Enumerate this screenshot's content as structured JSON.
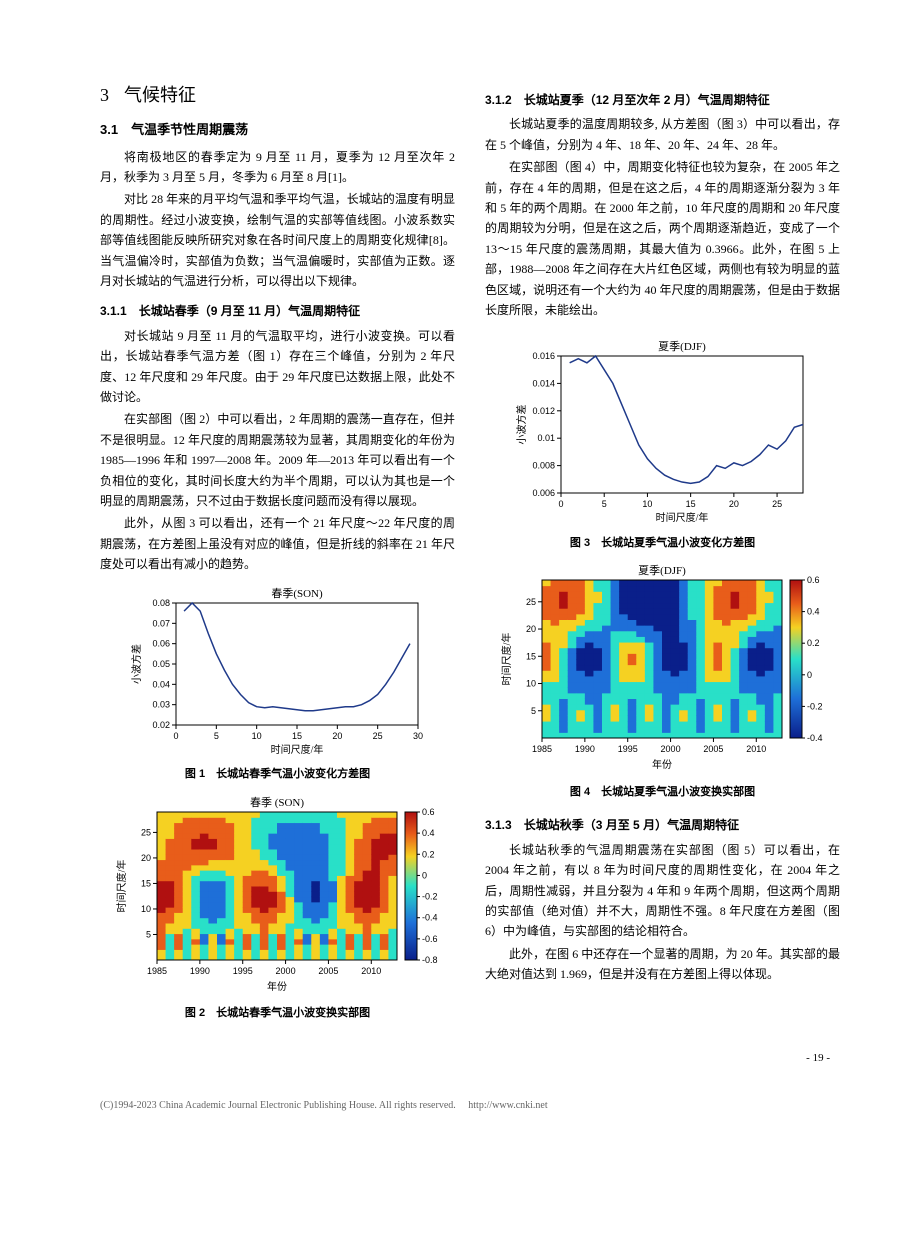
{
  "section": {
    "num": "3",
    "title": "气候特征"
  },
  "sub31": {
    "num": "3.1",
    "title": "气温季节性周期震荡",
    "p1": "将南极地区的春季定为 9 月至 11 月，夏季为 12 月至次年 2 月，秋季为 3 月至 5 月，冬季为 6 月至 8 月[1]。",
    "p2": "对比 28 年来的月平均气温和季平均气温，长城站的温度有明显的周期性。经过小波变换，绘制气温的实部等值线图。小波系数实部等值线图能反映所研究对象在各时间尺度上的周期变化规律[8]。当气温偏冷时，实部值为负数；当气温偏暖时，实部值为正数。逐月对长城站的气温进行分析，可以得出以下规律。"
  },
  "sub311": {
    "num": "3.1.1",
    "title": "长城站春季（9 月至 11 月）气温周期特征",
    "p1": "对长城站 9 月至 11 月的气温取平均，进行小波变换。可以看出，长城站春季气温方差（图 1）存在三个峰值，分别为 2 年尺度、12 年尺度和 29 年尺度。由于 29 年尺度已达数据上限，此处不做讨论。",
    "p2": "在实部图（图 2）中可以看出，2 年周期的震荡一直存在，但并不是很明显。12 年尺度的周期震荡较为显著，其周期变化的年份为 1985—1996 年和 1997—2008 年。2009 年—2013 年可以看出有一个负相位的变化，其时间长度大约为半个周期，可以认为其也是一个明显的周期震荡，只不过由于数据长度问题而没有得以展现。",
    "p3": "此外，从图 3 可以看出，还有一个 21 年尺度～22 年尺度的周期震荡，在方差图上虽没有对应的峰值，但是折线的斜率在 21 年尺度处可以看出有减小的趋势。"
  },
  "sub312": {
    "num": "3.1.2",
    "title": "长城站夏季（12 月至次年 2 月）气温周期特征",
    "p1": "长城站夏季的温度周期较多, 从方差图（图 3）中可以看出，存在 5 个峰值，分别为 4 年、18 年、20 年、24 年、28 年。",
    "p2": "在实部图（图 4）中，周期变化特征也较为复杂，在 2005 年之前，存在 4 年的周期，但是在这之后，4 年的周期逐渐分裂为 3 年和 5 年的两个周期。在 2000 年之前，10 年尺度的周期和 20 年尺度的周期较为分明，但是在这之后，两个周期逐渐趋近，变成了一个 13～15 年尺度的震荡周期，其最大值为 0.3966。此外，在图 5 上部，1988—2008 年之间存在大片红色区域，两侧也有较为明显的蓝色区域，说明还有一个大约为 40 年尺度的周期震荡，但是由于数据长度所限，未能绘出。"
  },
  "sub313": {
    "num": "3.1.3",
    "title": "长城站秋季（3 月至 5 月）气温周期特征",
    "p1": "长城站秋季的气温周期震荡在实部图（图 5）可以看出，在 2004 年之前，有以 8 年为时间尺度的周期性变化，在 2004 年之后，周期性减弱，并且分裂为 4 年和 9 年两个周期，但这两个周期的实部值（绝对值）并不大，周期性不强。8 年尺度在方差图（图 6）中为峰值，与实部图的结论相符合。",
    "p2": "此外，在图 6 中还存在一个显著的周期，为 20 年。其实部的最大绝对值达到 1.969，但是并没有在方差图上得以体现。"
  },
  "fig1": {
    "caption": "图 1　长城站春季气温小波变化方差图",
    "title": "春季(SON)",
    "xlabel": "时间尺度/年",
    "ylabel": "小波方差",
    "xlim": [
      0,
      30
    ],
    "xticks": [
      0,
      5,
      10,
      15,
      20,
      25,
      30
    ],
    "ylim": [
      0.02,
      0.08
    ],
    "yticks": [
      0.02,
      0.03,
      0.04,
      0.05,
      0.06,
      0.07,
      0.08
    ],
    "line_color": "#1f3a8a",
    "data_x": [
      1,
      2,
      3,
      4,
      5,
      6,
      7,
      8,
      9,
      10,
      11,
      12,
      13,
      14,
      15,
      16,
      17,
      18,
      19,
      20,
      21,
      22,
      23,
      24,
      25,
      26,
      27,
      28,
      29
    ],
    "data_y": [
      0.076,
      0.08,
      0.076,
      0.065,
      0.055,
      0.047,
      0.04,
      0.035,
      0.031,
      0.029,
      0.0285,
      0.029,
      0.0285,
      0.028,
      0.0275,
      0.027,
      0.027,
      0.0275,
      0.028,
      0.0285,
      0.029,
      0.029,
      0.03,
      0.032,
      0.035,
      0.04,
      0.046,
      0.053,
      0.06
    ]
  },
  "fig2": {
    "caption": "图 2　长城站春季气温小波变换实部图",
    "title": "春季 (SON)",
    "xlabel": "年份",
    "ylabel": "时间尺度/年",
    "xlim": [
      1985,
      2013
    ],
    "xticks": [
      1985,
      1990,
      1995,
      2000,
      2005,
      2010
    ],
    "ylim": [
      0,
      29
    ],
    "yticks": [
      5,
      10,
      15,
      20,
      25
    ],
    "colorbar": {
      "min": -0.8,
      "max": 0.6,
      "ticks": [
        -0.8,
        -0.6,
        -0.4,
        -0.2,
        0,
        0.2,
        0.4,
        0.6
      ]
    },
    "colors": {
      "neg2": "#0a1f8a",
      "neg1": "#1e6fd8",
      "zero": "#29e0c8",
      "pos1": "#f5d122",
      "pos2": "#e85d1a",
      "pos3": "#b01010"
    }
  },
  "fig3": {
    "caption": "图 3　长城站夏季气温小波变化方差图",
    "title": "夏季(DJF)",
    "xlabel": "时间尺度/年",
    "ylabel": "小波方差",
    "xlim": [
      0,
      28
    ],
    "xticks": [
      0,
      5,
      10,
      15,
      20,
      25
    ],
    "ylim": [
      0.006,
      0.016
    ],
    "yticks": [
      0.006,
      0.008,
      0.01,
      0.012,
      0.014,
      0.016
    ],
    "line_color": "#1f3a8a",
    "data_x": [
      1,
      2,
      3,
      4,
      5,
      6,
      7,
      8,
      9,
      10,
      11,
      12,
      13,
      14,
      15,
      16,
      17,
      18,
      19,
      20,
      21,
      22,
      23,
      24,
      25,
      26,
      27,
      28
    ],
    "data_y": [
      0.0155,
      0.0158,
      0.0155,
      0.016,
      0.015,
      0.014,
      0.0125,
      0.011,
      0.0095,
      0.0085,
      0.0078,
      0.0073,
      0.007,
      0.0068,
      0.0067,
      0.0068,
      0.0072,
      0.008,
      0.0078,
      0.0082,
      0.008,
      0.0083,
      0.0088,
      0.0095,
      0.0092,
      0.0098,
      0.0108,
      0.011
    ]
  },
  "fig4": {
    "caption": "图 4　长城站夏季气温小波变换实部图",
    "title": "夏季(DJF)",
    "xlabel": "年份",
    "ylabel": "时间尺度/年",
    "xlim": [
      1985,
      2013
    ],
    "xticks": [
      1985,
      1990,
      1995,
      2000,
      2005,
      2010
    ],
    "ylim": [
      0,
      29
    ],
    "yticks": [
      5,
      10,
      15,
      20,
      25
    ],
    "colorbar": {
      "min": -0.4,
      "max": 0.6,
      "ticks": [
        -0.4,
        -0.2,
        0,
        0.2,
        0.4,
        0.6
      ]
    },
    "colors": {
      "neg2": "#0a1f8a",
      "neg1": "#1e6fd8",
      "zero": "#29e0c8",
      "pos1": "#f5d122",
      "pos2": "#e85d1a",
      "pos3": "#b01010"
    }
  },
  "page_num": "- 19 -",
  "footer": {
    "text": "(C)1994-2023 China Academic Journal Electronic Publishing House. All rights reserved.",
    "url": "http://www.cnki.net"
  }
}
